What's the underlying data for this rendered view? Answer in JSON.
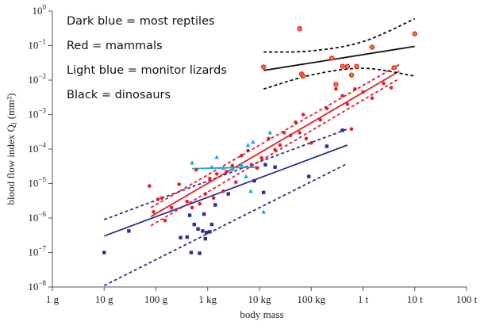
{
  "chart_data": {
    "type": "scatter",
    "title": "",
    "xlabel": "body mass",
    "ylabel": "blood flow index Q",
    "ylabel_subscript": "i",
    "ylabel_units": "(mm³)",
    "xscale": "log",
    "yscale": "log",
    "xlim": [
      1,
      100000000
    ],
    "ylim": [
      1e-08,
      1
    ],
    "grid": false,
    "x_ticks": [
      {
        "value": 1,
        "label": "1 g"
      },
      {
        "value": 10,
        "label": "10 g"
      },
      {
        "value": 100,
        "label": "100 g"
      },
      {
        "value": 1000,
        "label": "1 kg"
      },
      {
        "value": 10000,
        "label": "10 kg"
      },
      {
        "value": 100000,
        "label": "100 kg"
      },
      {
        "value": 1000000,
        "label": "1 t"
      },
      {
        "value": 10000000,
        "label": "10 t"
      },
      {
        "value": 100000000,
        "label": "100 t"
      }
    ],
    "y_ticks": [
      {
        "value": 1,
        "base": "10",
        "exp": "0"
      },
      {
        "value": 0.1,
        "base": "10",
        "exp": "−1"
      },
      {
        "value": 0.01,
        "base": "10",
        "exp": "−2"
      },
      {
        "value": 0.001,
        "base": "10",
        "exp": "−3"
      },
      {
        "value": 0.0001,
        "base": "10",
        "exp": "−4"
      },
      {
        "value": 1e-05,
        "base": "10",
        "exp": "−5"
      },
      {
        "value": 1e-06,
        "base": "10",
        "exp": "−6"
      },
      {
        "value": 1e-07,
        "base": "10",
        "exp": "−7"
      },
      {
        "value": 1e-08,
        "base": "10",
        "exp": "−8"
      }
    ],
    "legend": {
      "placement": "top-left",
      "entries": [
        "Dark blue = most reptiles",
        "Red = mammals",
        "Light blue = monitor lizards",
        "Black = dinosaurs"
      ]
    },
    "colors": {
      "reptiles": "#2b2f8f",
      "mammals": "#e4202a",
      "monitor_lizards": "#1aa7dc",
      "dinosaurs": "#111111",
      "dinosaur_fill": "#f47a20",
      "axis": "#555555"
    },
    "series": [
      {
        "name": "most reptiles",
        "color_key": "reptiles",
        "marker": "square",
        "points": [
          [
            10,
            1e-07
          ],
          [
            30,
            4.2e-07
          ],
          [
            300,
            2.7e-07
          ],
          [
            400,
            2.8e-07
          ],
          [
            450,
            1.2e-06
          ],
          [
            480,
            1e-07
          ],
          [
            550,
            6.5e-07
          ],
          [
            650,
            4.8e-07
          ],
          [
            700,
            9.5e-08
          ],
          [
            800,
            4.2e-07
          ],
          [
            850,
            1.3e-06
          ],
          [
            900,
            2.5e-07
          ],
          [
            950,
            3.8e-07
          ],
          [
            1100,
            4e-07
          ],
          [
            1200,
            6.5e-07
          ],
          [
            1400,
            2.4e-06
          ],
          [
            2500,
            5e-06
          ],
          [
            8000,
            1.2e-05
          ],
          [
            12000,
            5.5e-06
          ],
          [
            13000,
            3.5e-05
          ],
          [
            20000,
            3e-05
          ],
          [
            90000,
            1.6e-05
          ],
          [
            200000,
            0.00012
          ],
          [
            400000,
            0.00035
          ]
        ],
        "fit": {
          "x": [
            10,
            500000
          ],
          "y": [
            3e-07,
            0.00013
          ]
        },
        "ci_upper": {
          "x": [
            10,
            500000
          ],
          "y": [
            9e-07,
            0.00038
          ]
        },
        "ci_lower": {
          "x": [
            10,
            500000
          ],
          "y": [
            1.1e-08,
            3.8e-05
          ]
        }
      },
      {
        "name": "mammals",
        "color_key": "mammals",
        "marker": "circle",
        "points": [
          [
            75,
            8.5e-06
          ],
          [
            90,
            1.5e-06
          ],
          [
            110,
            3.5e-06
          ],
          [
            130,
            3.8e-06
          ],
          [
            150,
            8.5e-07
          ],
          [
            200,
            2e-06
          ],
          [
            280,
            9.5e-06
          ],
          [
            400,
            3e-06
          ],
          [
            500,
            2e-06
          ],
          [
            600,
            2.5e-05
          ],
          [
            700,
            2.6e-06
          ],
          [
            900,
            5e-06
          ],
          [
            1100,
            1.4e-05
          ],
          [
            1300,
            3.8e-06
          ],
          [
            1500,
            1.9e-05
          ],
          [
            2000,
            6e-06
          ],
          [
            2300,
            2.2e-05
          ],
          [
            3000,
            3.3e-05
          ],
          [
            3500,
            1.1e-05
          ],
          [
            4500,
            6.5e-05
          ],
          [
            6000,
            9e-05
          ],
          [
            7000,
            3.5e-05
          ],
          [
            9000,
            2.8e-05
          ],
          [
            11000,
            5.5e-05
          ],
          [
            15000,
            0.0002
          ],
          [
            20000,
            9.5e-05
          ],
          [
            25000,
            0.00013
          ],
          [
            30000,
            0.0003
          ],
          [
            40000,
            0.00025
          ],
          [
            50000,
            0.0006
          ],
          [
            60000,
            0.0003
          ],
          [
            70000,
            0.001
          ],
          [
            80000,
            0.0002
          ],
          [
            100000,
            0.00015
          ],
          [
            150000,
            0.0007
          ],
          [
            200000,
            0.0015
          ],
          [
            300000,
            0.0055
          ],
          [
            400000,
            0.0035
          ],
          [
            500000,
            0.002
          ],
          [
            700000,
            0.0055
          ],
          [
            1000000,
            0.0045
          ],
          [
            1500000,
            0.003
          ],
          [
            2500000,
            0.008
          ],
          [
            3500000,
            0.006
          ],
          [
            600000,
            0.00038
          ]
        ],
        "fit": {
          "x": [
            80,
            5000000
          ],
          "y": [
            1.1e-06,
            0.018
          ]
        },
        "ci_upper": {
          "x": [
            80,
            5000000
          ],
          "y": [
            2e-06,
            0.028
          ]
        },
        "ci_lower": {
          "x": [
            80,
            5000000
          ],
          "y": [
            6e-07,
            0.011
          ]
        }
      },
      {
        "name": "monitor lizards",
        "color_key": "monitor_lizards",
        "marker": "triangle",
        "points": [
          [
            500,
            4e-05
          ],
          [
            1200,
            3e-05
          ],
          [
            1500,
            5.8e-05
          ],
          [
            2000,
            2.8e-05
          ],
          [
            3000,
            2.6e-05
          ],
          [
            4500,
            3.5e-05
          ],
          [
            5500,
            1.6e-05
          ],
          [
            6000,
            0.00013
          ],
          [
            6800,
            6e-06
          ],
          [
            7500,
            0.00016
          ],
          [
            12000,
            1.5e-06
          ],
          [
            16000,
            0.0003
          ]
        ],
        "fit": {
          "x": [
            500,
            10000
          ],
          "y": [
            2.7e-05,
            3e-05
          ]
        }
      },
      {
        "name": "dinosaurs",
        "color_key": "dinosaurs",
        "marker": "circle-open",
        "points": [
          [
            12000,
            0.024
          ],
          [
            60000,
            0.31
          ],
          [
            65000,
            0.015
          ],
          [
            70000,
            0.013
          ],
          [
            250000,
            0.043
          ],
          [
            300000,
            0.0075
          ],
          [
            400000,
            0.025
          ],
          [
            500000,
            0.025
          ],
          [
            600000,
            0.014
          ],
          [
            750000,
            0.025
          ],
          [
            1500000,
            0.09
          ],
          [
            4000000,
            0.023
          ],
          [
            10000000,
            0.22
          ]
        ],
        "fit": {
          "x": [
            12000,
            10000000
          ],
          "y": [
            0.019,
            0.095
          ]
        },
        "ci_upper": {
          "x": [
            12000,
            100000,
            1000000,
            10000000
          ],
          "y": [
            0.065,
            0.07,
            0.13,
            0.6
          ]
        },
        "ci_lower": {
          "x": [
            12000,
            100000,
            1000000,
            10000000
          ],
          "y": [
            0.0055,
            0.014,
            0.022,
            0.013
          ]
        }
      }
    ]
  }
}
